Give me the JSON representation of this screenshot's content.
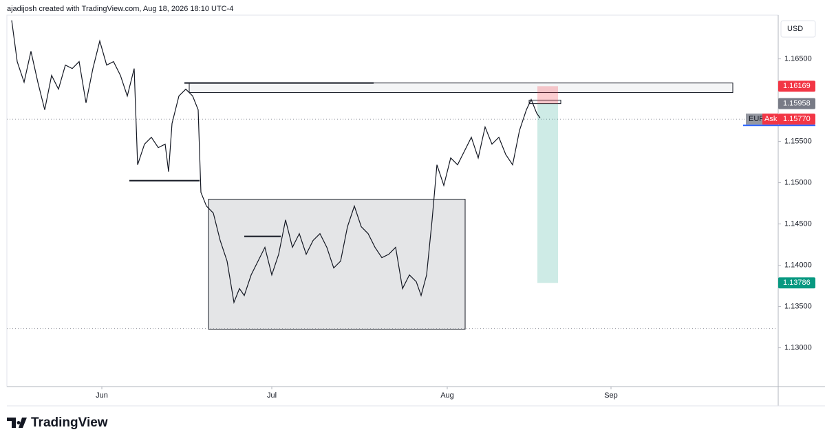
{
  "chart_data": {
    "type": "line",
    "title": "ajadijosh created with TradingView.com, Aug 18, 2026 18:10 UTC-4",
    "currency": "USD",
    "brand": "TradingView",
    "color": "#131722",
    "grid": false,
    "series": [
      {
        "x": [
          0.7,
          1.5,
          2.5,
          3.5,
          4.5,
          5.5,
          6.5,
          7.5,
          8.5,
          9.5,
          10.5,
          11.5,
          12.5,
          13.5,
          14.5,
          15.5,
          16.5,
          17.5,
          18.5,
          19,
          20,
          21,
          22,
          23,
          23.5,
          24,
          25,
          26,
          27,
          27.8,
          28.2,
          29,
          30,
          31,
          32,
          33,
          33.8,
          34.5,
          35.5,
          36.5,
          37.5,
          38.5,
          39.5,
          40.5,
          41.5,
          42.5,
          43.5,
          44.5,
          45.5,
          46.5,
          47.5,
          48.5,
          49.5,
          50.5,
          51.5,
          52.5,
          53.5,
          54.5,
          55.5,
          56.5,
          57.5,
          58.5,
          59.5,
          60.2,
          61,
          61.8,
          62.5,
          63.5,
          64.5,
          65.5,
          66.5,
          67.5,
          68.5,
          69.5,
          70.5,
          71.5,
          72.5,
          73.5,
          74.5,
          75.5,
          76.2,
          77,
          77.5
        ],
        "values": [
          1.16967,
          1.16467,
          1.16217,
          1.16592,
          1.16217,
          1.15883,
          1.163,
          1.16133,
          1.16425,
          1.16383,
          1.16467,
          1.15967,
          1.16383,
          1.16717,
          1.16425,
          1.16467,
          1.163,
          1.1605,
          1.16383,
          1.15217,
          1.15467,
          1.1555,
          1.15425,
          1.15467,
          1.15133,
          1.15717,
          1.1605,
          1.16133,
          1.1605,
          1.15883,
          1.14883,
          1.14717,
          1.14633,
          1.143,
          1.1405,
          1.1355,
          1.13717,
          1.13633,
          1.13883,
          1.1405,
          1.14217,
          1.13883,
          1.14133,
          1.1455,
          1.14217,
          1.14383,
          1.14133,
          1.143,
          1.14383,
          1.14217,
          1.13967,
          1.1405,
          1.14467,
          1.14717,
          1.14467,
          1.14383,
          1.14217,
          1.14092,
          1.14133,
          1.14217,
          1.13717,
          1.13883,
          1.138,
          1.13633,
          1.13883,
          1.1455,
          1.15217,
          1.14967,
          1.153,
          1.15217,
          1.15383,
          1.1555,
          1.153,
          1.15675,
          1.15467,
          1.1555,
          1.15342,
          1.15217,
          1.15633,
          1.15883,
          1.16008,
          1.15842,
          1.15783
        ]
      }
    ],
    "xlim": [
      0,
      112
    ],
    "ylim": [
      1.1253,
      1.1703
    ],
    "xticks": [
      {
        "value": 13.8,
        "label": "Jun"
      },
      {
        "value": 38.5,
        "label": "Jul"
      },
      {
        "value": 64,
        "label": "Aug"
      },
      {
        "value": 87.8,
        "label": "Sep"
      }
    ],
    "yticks": [
      {
        "value": 1.13,
        "label": "1.13000"
      },
      {
        "value": 1.135,
        "label": "1.13500"
      },
      {
        "value": 1.14,
        "label": "1.14000"
      },
      {
        "value": 1.145,
        "label": "1.14500"
      },
      {
        "value": 1.15,
        "label": "1.15000"
      },
      {
        "value": 1.155,
        "label": "1.15500"
      },
      {
        "value": 1.165,
        "label": "1.16500"
      }
    ],
    "drawings": [
      {
        "kind": "rect",
        "x0": 26.5,
        "x1": 105.5,
        "y0": 1.16208,
        "y1": 1.16092
      },
      {
        "kind": "rect",
        "x0": 29.3,
        "x1": 66.6,
        "y0": 1.148,
        "y1": 1.13225
      },
      {
        "kind": "hline",
        "x0": 17.8,
        "x1": 28,
        "y0": 1.15025
      },
      {
        "kind": "hline",
        "x0": 25.8,
        "x1": 53.3,
        "y0": 1.16208
      },
      {
        "kind": "hline",
        "x0": 34.5,
        "x1": 39.8,
        "y0": 1.1435
      },
      {
        "kind": "rect",
        "x0": 75.9,
        "x1": 80.5,
        "y0": 1.16,
        "y1": 1.15958
      },
      {
        "kind": "dotted",
        "y0": 1.1577
      },
      {
        "kind": "dotted",
        "y0": 1.13233
      }
    ],
    "position": {
      "x0": 77.1,
      "x1": 80.1,
      "entry": 1.15958,
      "stop": 1.16169,
      "target": 1.13786
    },
    "price_labels": [
      {
        "value": 1.16169,
        "label": "1.16169",
        "color": "#f23645"
      },
      {
        "value": 1.15958,
        "label": "1.15958",
        "color": "#787b86"
      },
      {
        "value": 1.1577,
        "label": "1.15770",
        "color": "#f23645",
        "tag": "Ask",
        "symbol": "EUR"
      },
      {
        "value": 1.13786,
        "label": "1.13786",
        "color": "#089981"
      }
    ]
  }
}
